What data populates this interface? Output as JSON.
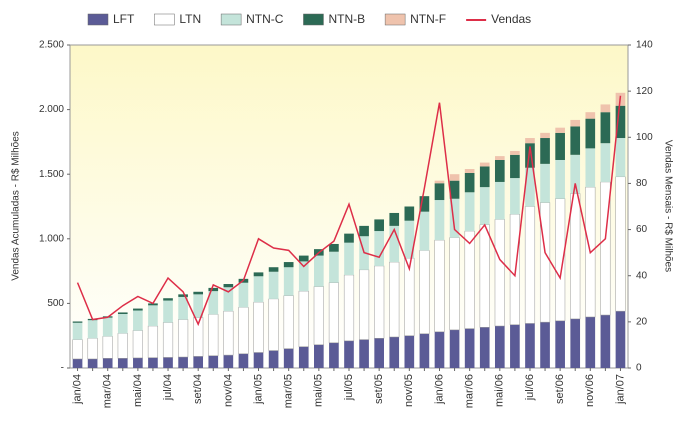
{
  "chart_data": {
    "type": "bar",
    "stacked": true,
    "y_label": "Vendas Acumuladas - R$ Milhões",
    "y2_label": "Vendas Mensais - R$ Milhões",
    "categories": [
      "jan/04",
      null,
      "mar/04",
      null,
      "mai/04",
      null,
      "jul/04",
      null,
      "set/04",
      null,
      "nov/04",
      null,
      "jan/05",
      null,
      "mar/05",
      null,
      "mai/05",
      null,
      "jul/05",
      null,
      "set/05",
      null,
      "nov/05",
      null,
      "jan/06",
      null,
      "mar/06",
      null,
      "mai/06",
      null,
      "jul/06",
      null,
      "set/06",
      null,
      "nov/06",
      null,
      "jan/07"
    ],
    "ylim": [
      0,
      2500
    ],
    "yticks": [
      {
        "value": 0,
        "label": "-"
      },
      500,
      {
        "value": 1000,
        "label": "1.000"
      },
      {
        "value": 1500,
        "label": "1.500"
      },
      {
        "value": 2000,
        "label": "2.000"
      },
      {
        "value": 2500,
        "label": "2.500"
      }
    ],
    "y2lim": [
      0,
      140
    ],
    "y2ticks": [
      0,
      20,
      40,
      60,
      80,
      100,
      120,
      140
    ],
    "series": [
      {
        "name": "LFT",
        "color": "#5b5b96",
        "values": [
          70,
          70,
          75,
          75,
          78,
          80,
          82,
          85,
          90,
          95,
          100,
          110,
          120,
          135,
          150,
          165,
          180,
          195,
          210,
          220,
          230,
          240,
          250,
          265,
          280,
          295,
          305,
          315,
          325,
          335,
          345,
          355,
          365,
          380,
          395,
          410,
          440
        ]
      },
      {
        "name": "LTN",
        "color": "#ffffff",
        "values": [
          150,
          160,
          170,
          193,
          212,
          245,
          270,
          290,
          300,
          320,
          340,
          360,
          390,
          400,
          410,
          430,
          450,
          465,
          510,
          540,
          560,
          580,
          600,
          645,
          710,
          715,
          755,
          795,
          825,
          855,
          905,
          925,
          945,
          970,
          1005,
          1030,
          1040
        ]
      },
      {
        "name": "NTN-C",
        "color": "#c4e4da",
        "values": [
          130,
          140,
          145,
          150,
          155,
          160,
          170,
          175,
          180,
          180,
          185,
          190,
          200,
          210,
          220,
          230,
          240,
          240,
          250,
          260,
          270,
          280,
          290,
          300,
          310,
          300,
          300,
          290,
          290,
          280,
          300,
          300,
          300,
          300,
          300,
          300,
          300
        ]
      },
      {
        "name": "NTN-B",
        "color": "#2c6a55",
        "values": [
          10,
          10,
          10,
          12,
          15,
          15,
          18,
          20,
          20,
          25,
          25,
          30,
          30,
          35,
          40,
          45,
          50,
          60,
          70,
          80,
          90,
          100,
          110,
          120,
          130,
          140,
          150,
          160,
          170,
          180,
          190,
          200,
          210,
          220,
          230,
          240,
          250
        ]
      },
      {
        "name": "NTN-F",
        "color": "#efc3ad",
        "values": [
          0,
          0,
          0,
          0,
          0,
          0,
          0,
          0,
          0,
          0,
          0,
          0,
          0,
          0,
          0,
          0,
          0,
          0,
          0,
          0,
          0,
          0,
          0,
          0,
          20,
          50,
          30,
          30,
          30,
          30,
          40,
          40,
          40,
          50,
          50,
          60,
          100
        ]
      },
      {
        "name": "Vendas",
        "color": "#dd2e48",
        "type": "line",
        "axis": "y2",
        "values": [
          37,
          21,
          22,
          27,
          31,
          28,
          39,
          33,
          19,
          36,
          33,
          38,
          56,
          52,
          51,
          44,
          50,
          55,
          71,
          50,
          48,
          60,
          43,
          78,
          115,
          60,
          54,
          62,
          47,
          40,
          96,
          50,
          39,
          80,
          50,
          56,
          118
        ]
      }
    ]
  }
}
